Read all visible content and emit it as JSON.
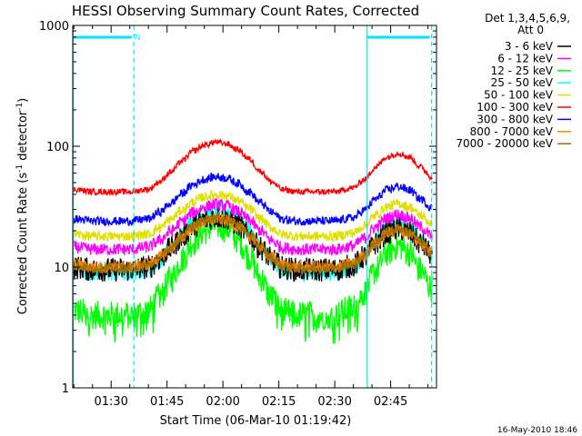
{
  "chart_data": {
    "type": "line",
    "title": "HESSI Observing Summary Count Rates, Corrected",
    "ylabel_parts": [
      "Corrected Count Rate (s",
      "-1",
      " detector",
      "-1",
      ")"
    ],
    "xlabel": "Start Time (06-Mar-10 01:19:42)",
    "footer": "16-May-2010 18:46",
    "y_scale": "log",
    "ylim": [
      1,
      1000
    ],
    "y_ticks": [
      {
        "value": 1,
        "label": "1"
      },
      {
        "value": 10,
        "label": "10"
      },
      {
        "value": 100,
        "label": "100"
      },
      {
        "value": 1000,
        "label": "1000"
      }
    ],
    "x_ticks": [
      {
        "minute": 90,
        "label": "01:30"
      },
      {
        "minute": 105,
        "label": "01:45"
      },
      {
        "minute": 120,
        "label": "02:00"
      },
      {
        "minute": 135,
        "label": "02:15"
      },
      {
        "minute": 150,
        "label": "02:30"
      },
      {
        "minute": 165,
        "label": "02:45"
      }
    ],
    "xlim_minutes": [
      79.7,
      177.3
    ],
    "legend": {
      "header": [
        "Det 1,3,4,5,6,9,",
        "Att 0"
      ],
      "position": "top-right, outside plot"
    },
    "flags": {
      "saa_bars": [
        {
          "start": 79.7,
          "end": 95.5,
          "label": "N"
        },
        {
          "start": 158.7,
          "end": 175.5,
          "label": ""
        }
      ],
      "solid_lines": [
        79.8,
        158.7
      ],
      "dashed_lines": [
        96.1,
        176.0
      ],
      "color": "#00e5ff"
    },
    "orbit_profile": {
      "x_minutes": [
        80,
        85,
        90,
        95,
        100,
        103,
        106,
        109,
        112,
        115,
        118,
        121,
        124,
        127,
        130,
        133,
        136,
        140,
        145,
        150,
        155,
        158,
        161,
        164,
        167,
        170,
        173,
        176
      ],
      "shape": [
        0.05,
        0.0,
        0.0,
        0.0,
        0.05,
        0.2,
        0.4,
        0.62,
        0.82,
        0.94,
        1.0,
        0.97,
        0.85,
        0.66,
        0.42,
        0.2,
        0.04,
        0.0,
        0.0,
        0.0,
        0.08,
        0.25,
        0.5,
        0.7,
        0.78,
        0.7,
        0.5,
        0.3
      ]
    },
    "series": [
      {
        "name": "3 - 6 keV",
        "color": "#000000",
        "base": 9.5,
        "peak": 26,
        "noise": 0.1
      },
      {
        "name": "6 - 12 keV",
        "color": "#ff00ff",
        "base": 14,
        "peak": 33,
        "noise": 0.05
      },
      {
        "name": "12 - 25 keV",
        "color": "#00ff00",
        "base": 4.0,
        "peak": 22,
        "noise": 0.12
      },
      {
        "name": "25 - 50 keV",
        "color": "#00ffff",
        "base": 9.0,
        "peak": 30,
        "noise": 0.07
      },
      {
        "name": "50 - 100 keV",
        "color": "#e0e000",
        "base": 18,
        "peak": 40,
        "noise": 0.04
      },
      {
        "name": "100 - 300 keV",
        "color": "#ff0000",
        "base": 42,
        "peak": 108,
        "noise": 0.025
      },
      {
        "name": "300 - 800 keV",
        "color": "#0000ff",
        "base": 24,
        "peak": 56,
        "noise": 0.035
      },
      {
        "name": "800 - 7000 keV",
        "color": "#ff8000",
        "base": 10,
        "peak": 25,
        "noise": 0.05
      },
      {
        "name": "7000 - 20000 keV",
        "color": "#a07000",
        "base": 9.8,
        "peak": 26,
        "noise": 0.04
      }
    ]
  }
}
